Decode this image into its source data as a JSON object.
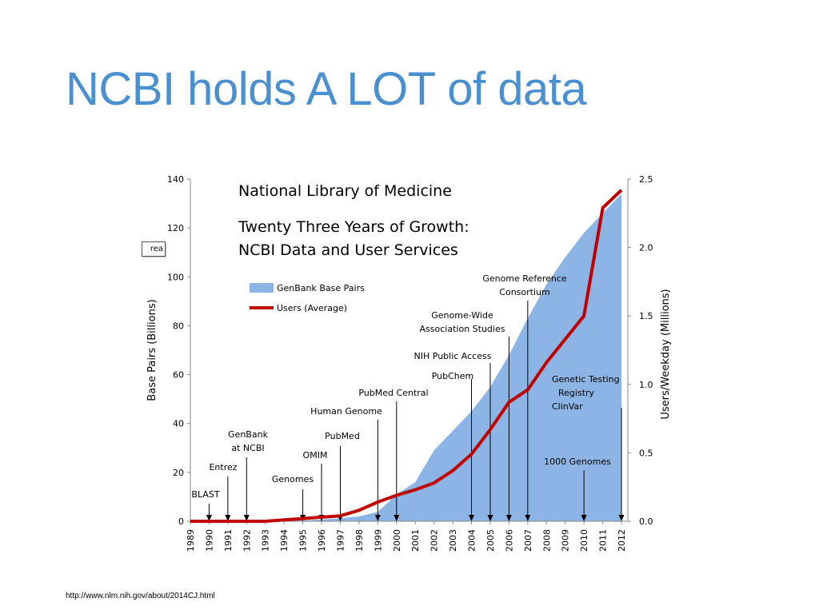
{
  "slide": {
    "title": "NCBI holds A LOT of data",
    "source": "http://www.nlm.nih.gov/about/2014CJ.html",
    "clipped_label": "rea"
  },
  "colors": {
    "title": "#4a8fcf",
    "area": "#8cb4e4",
    "line": "#c00000"
  },
  "chart_data": {
    "type": "area",
    "title_lines": [
      "National Library of Medicine",
      "Twenty Three Years of Growth:",
      "NCBI Data and User Services"
    ],
    "ylabel": "Base Pairs (Billions)",
    "y2label": "Users/Weekday (Millions)",
    "ylim": [
      0,
      140
    ],
    "yticks": [
      "0",
      "20",
      "40",
      "60",
      "80",
      "100",
      "120",
      "140"
    ],
    "y2lim": [
      0,
      2.5
    ],
    "y2ticks": [
      "0.0",
      "0.5",
      "1.0",
      "1.5",
      "2.0",
      "2.5"
    ],
    "x": [
      "1989",
      "1990",
      "1991",
      "1992",
      "1993",
      "1994",
      "1995",
      "1996",
      "1997",
      "1998",
      "1999",
      "2000",
      "2001",
      "2002",
      "2003",
      "2004",
      "2005",
      "2006",
      "2007",
      "2008",
      "2009",
      "2010",
      "2011",
      "2012"
    ],
    "legend": [
      "GenBank Base Pairs",
      "Users (Average)"
    ],
    "series": [
      {
        "name": "GenBank Base Pairs",
        "axis": "left",
        "values": [
          0,
          0,
          0,
          0,
          0.1,
          0.2,
          0.4,
          0.7,
          1.2,
          2.0,
          3.8,
          11,
          16,
          29,
          37,
          45,
          55,
          68,
          83,
          97,
          108,
          118,
          126,
          134
        ]
      },
      {
        "name": "Users (Average)",
        "axis": "right",
        "values": [
          0,
          0,
          0,
          0,
          0,
          0.01,
          0.02,
          0.03,
          0.04,
          0.08,
          0.14,
          0.19,
          0.23,
          0.28,
          0.37,
          0.49,
          0.67,
          0.87,
          0.96,
          1.16,
          1.33,
          1.5,
          2.29,
          2.42
        ]
      }
    ],
    "annotations": [
      {
        "lines": [
          "BLAST"
        ],
        "x": "1990"
      },
      {
        "lines": [
          "Entrez"
        ],
        "x": "1991"
      },
      {
        "lines": [
          "GenBank",
          "at NCBI"
        ],
        "x": "1992"
      },
      {
        "lines": [
          "Genomes"
        ],
        "x": "1995"
      },
      {
        "lines": [
          "OMIM"
        ],
        "x": "1996"
      },
      {
        "lines": [
          "PubMed"
        ],
        "x": "1997"
      },
      {
        "lines": [
          "Human Genome"
        ],
        "x": "1999"
      },
      {
        "lines": [
          "PubMed Central"
        ],
        "x": "2000"
      },
      {
        "lines": [
          "PubChem"
        ],
        "x": "2004"
      },
      {
        "lines": [
          "NIH Public Access"
        ],
        "x": "2005"
      },
      {
        "lines": [
          "Genome-Wide",
          "Association Studies"
        ],
        "x": "2006"
      },
      {
        "lines": [
          "Genome Reference",
          "Consortium"
        ],
        "x": "2007"
      },
      {
        "lines": [
          "1000 Genomes"
        ],
        "x": "2010"
      },
      {
        "lines": [
          "Genetic Testing",
          "Registry",
          "ClinVar"
        ],
        "x": "2012"
      }
    ]
  }
}
